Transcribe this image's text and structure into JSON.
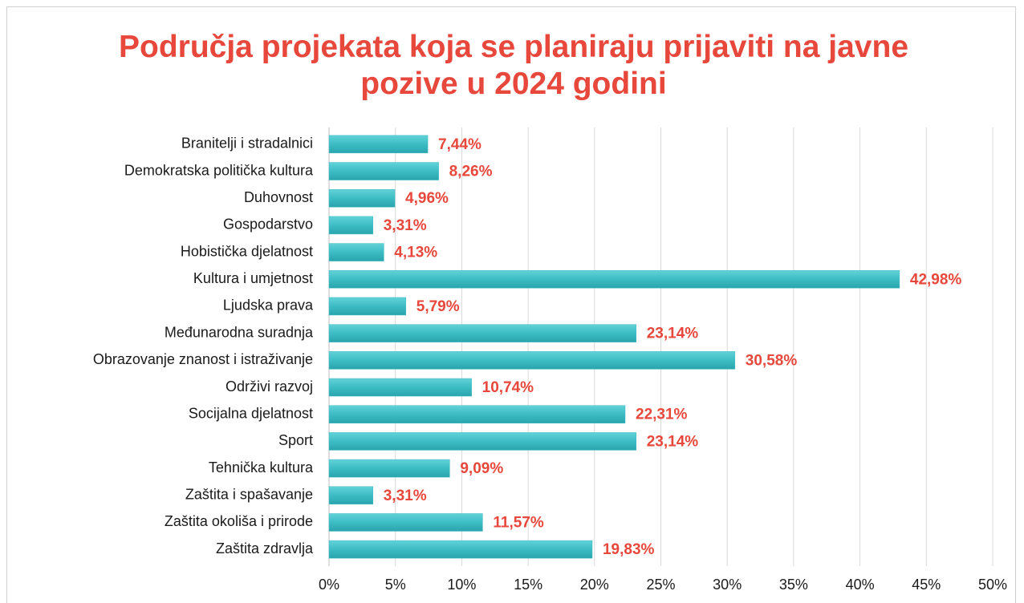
{
  "chart_data": {
    "type": "bar",
    "orientation": "horizontal",
    "title": "Područja projekata koja se planiraju prijaviti na javne pozive u 2024 godini",
    "categories": [
      "Branitelji i stradalnici",
      "Demokratska politička kultura",
      "Duhovnost",
      "Gospodarstvo",
      "Hobistička djelatnost",
      "Kultura i umjetnost",
      "Ljudska prava",
      "Međunarodna suradnja",
      "Obrazovanje znanost i istraživanje",
      "Održivi razvoj",
      "Socijalna djelatnost",
      "Sport",
      "Tehnička kultura",
      "Zaštita i spašavanje",
      "Zaštita okoliša i prirode",
      "Zaštita zdravlja"
    ],
    "values": [
      7.44,
      8.26,
      4.96,
      3.31,
      4.13,
      42.98,
      5.79,
      23.14,
      30.58,
      10.74,
      22.31,
      23.14,
      9.09,
      3.31,
      11.57,
      19.83
    ],
    "value_labels": [
      "7,44%",
      "8,26%",
      "4,96%",
      "3,31%",
      "4,13%",
      "42,98%",
      "5,79%",
      "23,14%",
      "30,58%",
      "10,74%",
      "22,31%",
      "23,14%",
      "9,09%",
      "3,31%",
      "11,57%",
      "19,83%"
    ],
    "color": "#3dbcc4",
    "xlim": [
      0,
      50
    ],
    "xticks": [
      {
        "value": 0,
        "label": "0%"
      },
      {
        "value": 5,
        "label": "5%"
      },
      {
        "value": 10,
        "label": "10%"
      },
      {
        "value": 15,
        "label": "15%"
      },
      {
        "value": 20,
        "label": "20%"
      },
      {
        "value": 25,
        "label": "25%"
      },
      {
        "value": 30,
        "label": "30%"
      },
      {
        "value": 35,
        "label": "35%"
      },
      {
        "value": 40,
        "label": "40%"
      },
      {
        "value": 45,
        "label": "45%"
      },
      {
        "value": 50,
        "label": "50%"
      }
    ],
    "grid": true
  }
}
